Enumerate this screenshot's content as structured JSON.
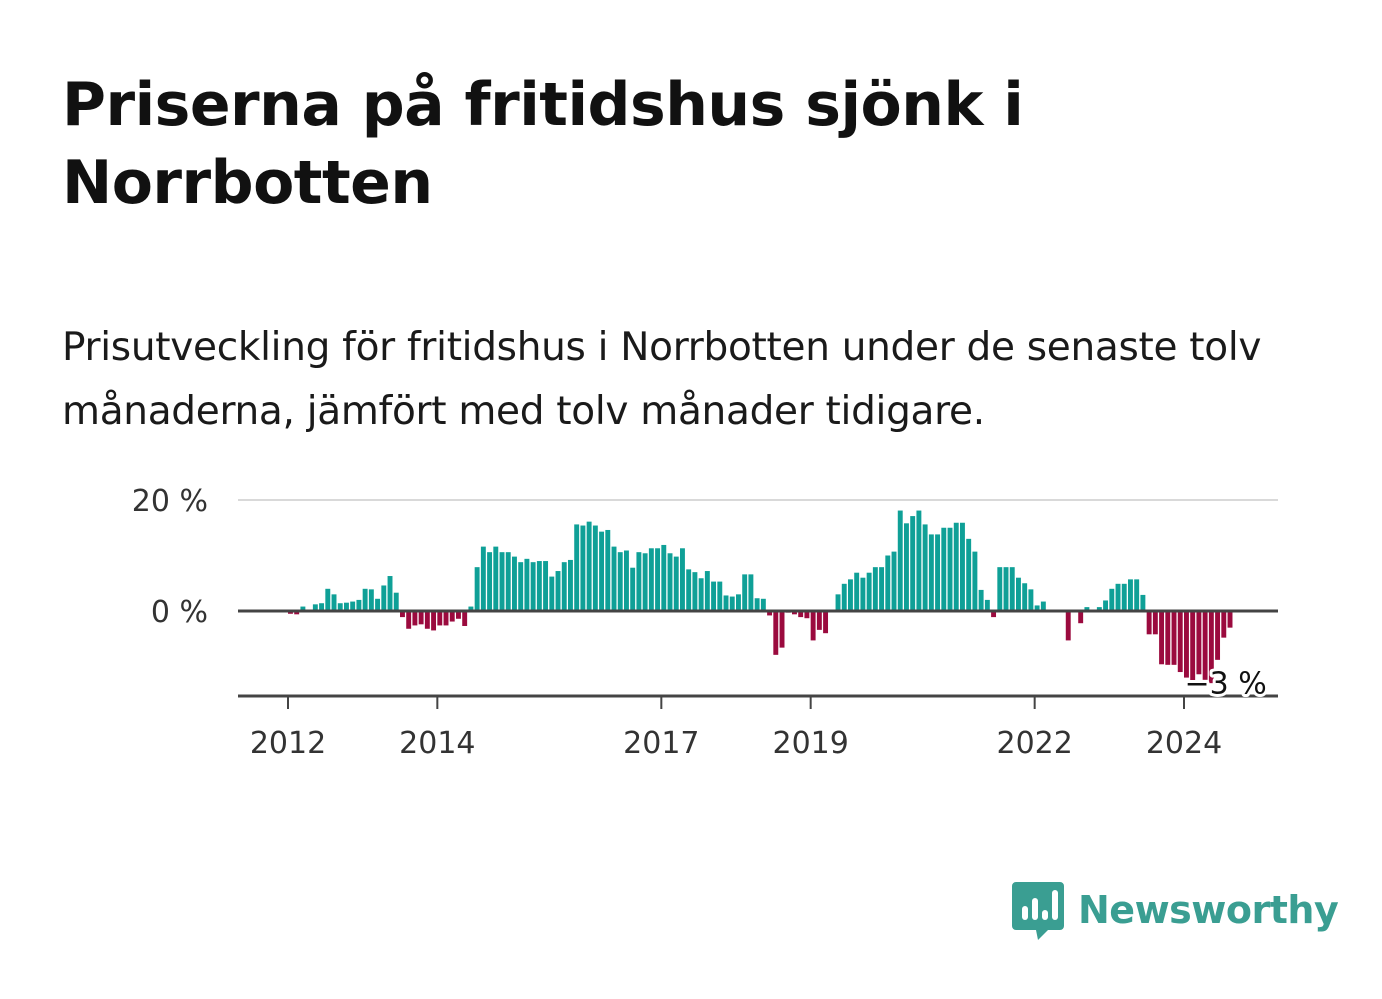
{
  "title": "Priserna på fritidshus sjönk i Norrbotten",
  "subtitle": "Prisutveckling för fritidshus i Norrbotten under de senaste tolv månaderna, jämfört med tolv månader tidigare.",
  "brand": {
    "name": "Newsworthy"
  },
  "colors": {
    "positive": "#0fa097",
    "negative": "#9b0a3e",
    "grid": "#d9d9d9",
    "axis": "#444444",
    "brand": "#3a9e92"
  },
  "chart_data": {
    "type": "bar",
    "title": "Priserna på fritidshus sjönk i Norrbotten",
    "xlabel": "",
    "ylabel": "",
    "unit": "%",
    "ylim": [
      -15,
      20
    ],
    "yticks": [
      {
        "value": 20,
        "label": "20 %"
      },
      {
        "value": 0,
        "label": "0 %"
      }
    ],
    "xticks": [
      {
        "value": 2012,
        "label": "2012"
      },
      {
        "value": 2014,
        "label": "2014"
      },
      {
        "value": 2017,
        "label": "2017"
      },
      {
        "value": 2019,
        "label": "2019"
      },
      {
        "value": 2022,
        "label": "2022"
      },
      {
        "value": 2024,
        "label": "2024"
      }
    ],
    "start": {
      "year": 2011,
      "month": 5
    },
    "annotation": {
      "text": "−3 %",
      "value": -3
    },
    "values": [
      0,
      0,
      0,
      0,
      0,
      0,
      0,
      0,
      -0.5,
      -0.6,
      0.8,
      0.2,
      1.2,
      1.4,
      4,
      3,
      1.4,
      1.5,
      1.7,
      2,
      4,
      3.9,
      2.2,
      4.6,
      6.3,
      3.3,
      -1.1,
      -3.2,
      -2.6,
      -2.4,
      -3.2,
      -3.5,
      -2.6,
      -2.6,
      -1.9,
      -1.4,
      -2.7,
      0.8,
      7.9,
      11.6,
      10.6,
      11.6,
      10.6,
      10.6,
      9.8,
      8.8,
      9.4,
      8.8,
      9.0,
      9.0,
      6.2,
      7.2,
      8.8,
      9.2,
      15.6,
      15.4,
      16.1,
      15.4,
      14.3,
      14.6,
      11.6,
      10.6,
      10.9,
      7.8,
      10.6,
      10.4,
      11.3,
      11.3,
      11.9,
      10.4,
      9.8,
      11.3,
      7.5,
      7.0,
      5.9,
      7.2,
      5.3,
      5.3,
      2.8,
      2.6,
      3.0,
      6.6,
      6.6,
      2.3,
      2.2,
      -0.8,
      -7.9,
      -6.6,
      -0.3,
      -0.6,
      -1.1,
      -1.3,
      -5.3,
      -3.4,
      -4,
      0,
      3,
      4.9,
      5.7,
      6.9,
      6.0,
      6.9,
      7.9,
      7.9,
      10.0,
      10.7,
      18.1,
      15.8,
      17.1,
      18.1,
      15.6,
      13.8,
      13.8,
      15.0,
      15.0,
      15.9,
      15.9,
      13.0,
      10.7,
      3.8,
      2.0,
      -1.1,
      7.9,
      7.9,
      7.9,
      6.0,
      5.0,
      3.9,
      1.0,
      1.7,
      0,
      0,
      0,
      -5.3,
      0,
      -2.2,
      0.7,
      0,
      0.7,
      1.9,
      4,
      4.9,
      4.9,
      5.7,
      5.7,
      2.9,
      -4.2,
      -4.2,
      -9.6,
      -9.7,
      -9.7,
      -11,
      -12,
      -13,
      -11.4,
      -12.4,
      -13,
      -8.8,
      -4.8,
      -3
    ]
  }
}
